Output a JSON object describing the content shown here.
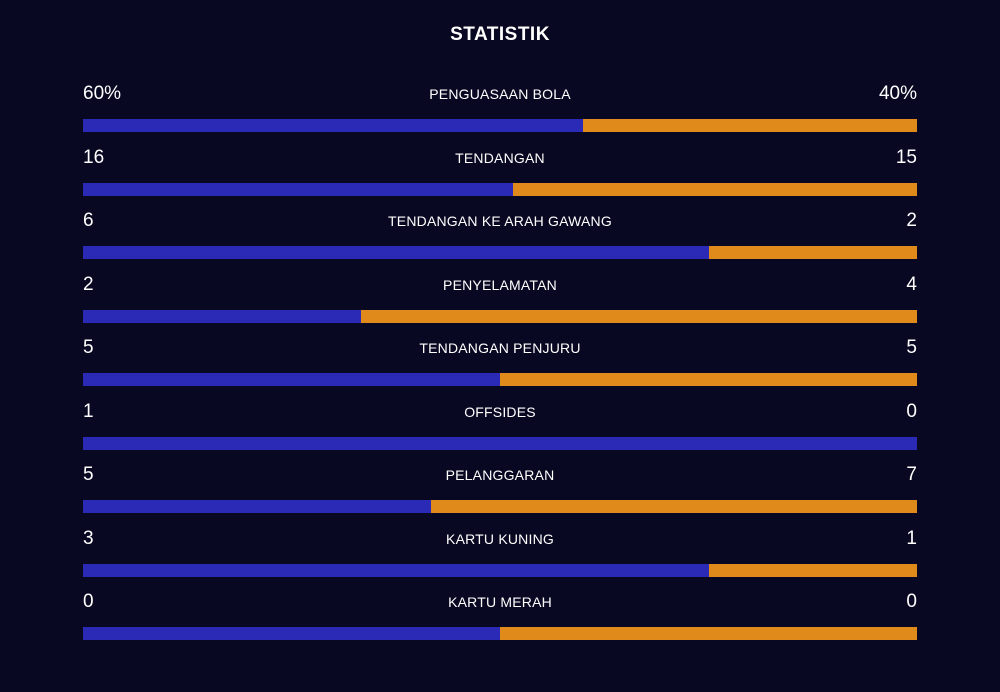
{
  "title": "STATISTIK",
  "colors": {
    "home": "#2a2ab6",
    "away": "#e08a1c",
    "background": "#080822"
  },
  "stats": [
    {
      "label": "PENGUASAAN BOLA",
      "home": "60%",
      "away": "40%",
      "home_share": 0.6
    },
    {
      "label": "TENDANGAN",
      "home": "16",
      "away": "15",
      "home_share": 0.516
    },
    {
      "label": "TENDANGAN KE ARAH GAWANG",
      "home": "6",
      "away": "2",
      "home_share": 0.75
    },
    {
      "label": "PENYELAMATAN",
      "home": "2",
      "away": "4",
      "home_share": 0.333
    },
    {
      "label": "TENDANGAN PENJURU",
      "home": "5",
      "away": "5",
      "home_share": 0.5
    },
    {
      "label": "OFFSIDES",
      "home": "1",
      "away": "0",
      "home_share": 1.0
    },
    {
      "label": "PELANGGARAN",
      "home": "5",
      "away": "7",
      "home_share": 0.417
    },
    {
      "label": "KARTU KUNING",
      "home": "3",
      "away": "1",
      "home_share": 0.75
    },
    {
      "label": "KARTU MERAH",
      "home": "0",
      "away": "0",
      "home_share": 0.5
    }
  ]
}
